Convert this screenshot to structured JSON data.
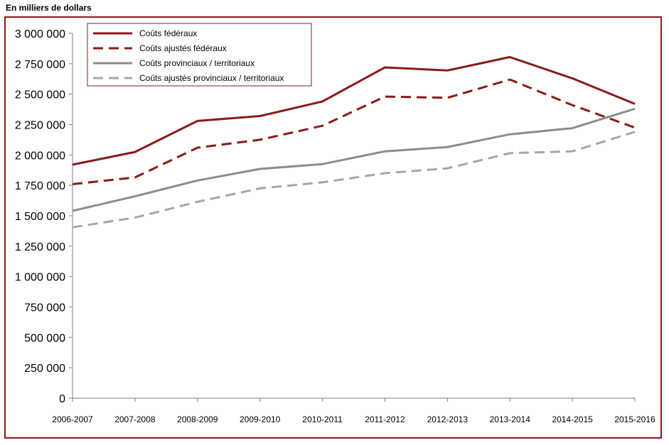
{
  "chart_data": {
    "type": "line",
    "unit_label": "En milliers de dollars",
    "categories": [
      "2006-2007",
      "2007-2008",
      "2008-2009",
      "2009-2010",
      "2010-2011",
      "2011-2012",
      "2012-2013",
      "2013-2014",
      "2014-2015",
      "2015-2016"
    ],
    "ylim": [
      0,
      3000000
    ],
    "yticks": [
      0,
      250000,
      500000,
      750000,
      1000000,
      1250000,
      1500000,
      1750000,
      2000000,
      2250000,
      2500000,
      2750000,
      3000000
    ],
    "ytick_labels": [
      "0",
      "250 000",
      "500 000",
      "750 000",
      "1 000 000",
      "1 250 000",
      "1 500 000",
      "1 750 000",
      "2 000 000",
      "2 250 000",
      "2 500 000",
      "2 750 000",
      "3 000 000"
    ],
    "grid": false,
    "legend_position": "top-left",
    "series": [
      {
        "name": "Coûts fédéraux",
        "color": "#8b1a1a",
        "dashed": false,
        "values": [
          1920000,
          2025000,
          2280000,
          2320000,
          2440000,
          2720000,
          2695000,
          2805000,
          2630000,
          2420000
        ]
      },
      {
        "name": "Coûts ajustés fédéraux",
        "color": "#8b1a1a",
        "dashed": true,
        "values": [
          1760000,
          1815000,
          2060000,
          2125000,
          2240000,
          2480000,
          2470000,
          2620000,
          2410000,
          2225000
        ]
      },
      {
        "name": "Coûts provinciaux  / territoriaux",
        "color": "#8c8c8c",
        "dashed": false,
        "values": [
          1540000,
          1660000,
          1790000,
          1885000,
          1925000,
          2030000,
          2065000,
          2170000,
          2220000,
          2380000
        ]
      },
      {
        "name": "Coûts ajustés provinciaux  / territoriaux",
        "color": "#a6a6a6",
        "dashed": true,
        "values": [
          1405000,
          1485000,
          1615000,
          1725000,
          1775000,
          1850000,
          1890000,
          2015000,
          2030000,
          2190000
        ]
      }
    ]
  }
}
